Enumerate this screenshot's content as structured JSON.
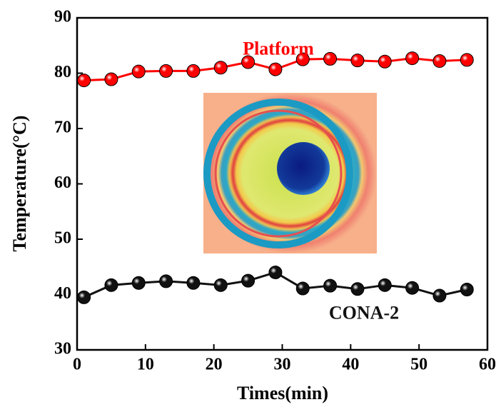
{
  "chart_data": {
    "type": "line",
    "x_label": "Times(min)",
    "y_label": "Temperature(°C)",
    "x": [
      1,
      5,
      9,
      13,
      17,
      21,
      25,
      29,
      33,
      37,
      41,
      45,
      49,
      53,
      57
    ],
    "series": [
      {
        "name": "Platform",
        "color": "#ff0000",
        "values": [
          78.7,
          78.9,
          80.3,
          80.4,
          80.4,
          81,
          82,
          80.7,
          82.5,
          82.6,
          82.3,
          82.1,
          82.7,
          82.2,
          82.4
        ]
      },
      {
        "name": "CONA-2",
        "color": "#111111",
        "values": [
          39.5,
          41.7,
          42.1,
          42.4,
          42.1,
          41.7,
          42.5,
          44,
          41.1,
          41.6,
          41,
          41.7,
          41.2,
          39.8,
          40.9
        ]
      }
    ],
    "xlim": [
      0,
      60
    ],
    "xticks": [
      0,
      10,
      20,
      30,
      40,
      50,
      60
    ],
    "ylim": [
      30,
      90
    ],
    "yticks": [
      30,
      40,
      50,
      60,
      70,
      80,
      90
    ]
  }
}
